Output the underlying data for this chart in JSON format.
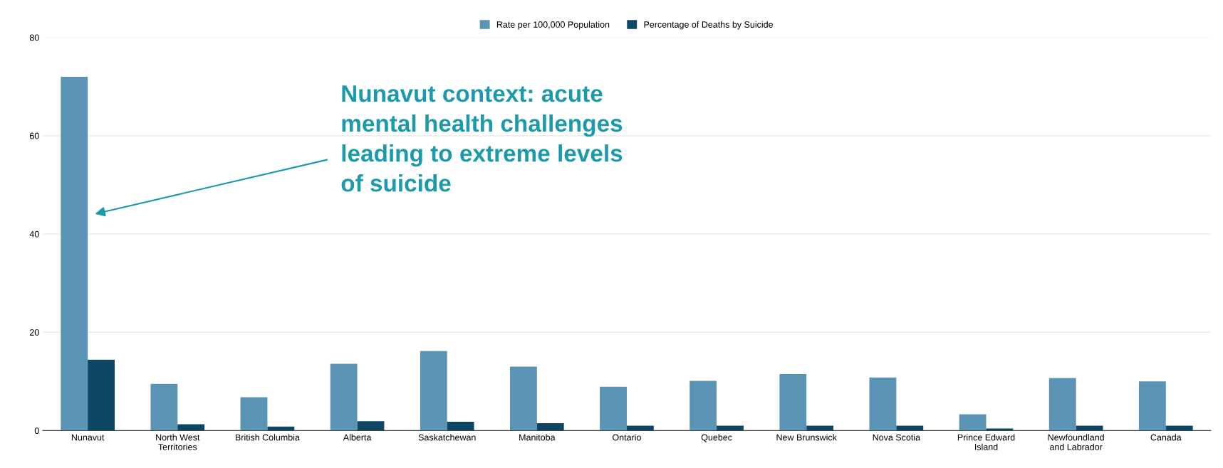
{
  "chart_data": {
    "type": "bar",
    "categories": [
      "Nunavut",
      "North West\nTerritories",
      "British Columbia",
      "Alberta",
      "Saskatchewan",
      "Manitoba",
      "Ontario",
      "Quebec",
      "New Brunswick",
      "Nova Scotia",
      "Prince Edward\nIsland",
      "Newfoundland\nand Labrador",
      "Canada"
    ],
    "series": [
      {
        "name": "Rate per 100,000 Population",
        "color": "#5b93b4",
        "values": [
          72,
          9.5,
          6.8,
          13.6,
          16.2,
          13.0,
          8.9,
          10.1,
          11.5,
          10.8,
          3.3,
          10.7,
          10.0
        ]
      },
      {
        "name": "Percentage of Deaths by Suicide",
        "color": "#0d4763",
        "values": [
          14.4,
          1.3,
          0.8,
          1.9,
          1.8,
          1.5,
          1.0,
          1.0,
          1.0,
          1.0,
          0.4,
          1.0,
          1.0
        ]
      }
    ],
    "ylim": [
      0,
      80
    ],
    "yticks": [
      0,
      20,
      40,
      60,
      80
    ],
    "grid": "y",
    "legend": "top",
    "annotations": [
      "Nunavut context: acute\nmental health challenges\nleading to extreme levels\nof suicide"
    ]
  }
}
